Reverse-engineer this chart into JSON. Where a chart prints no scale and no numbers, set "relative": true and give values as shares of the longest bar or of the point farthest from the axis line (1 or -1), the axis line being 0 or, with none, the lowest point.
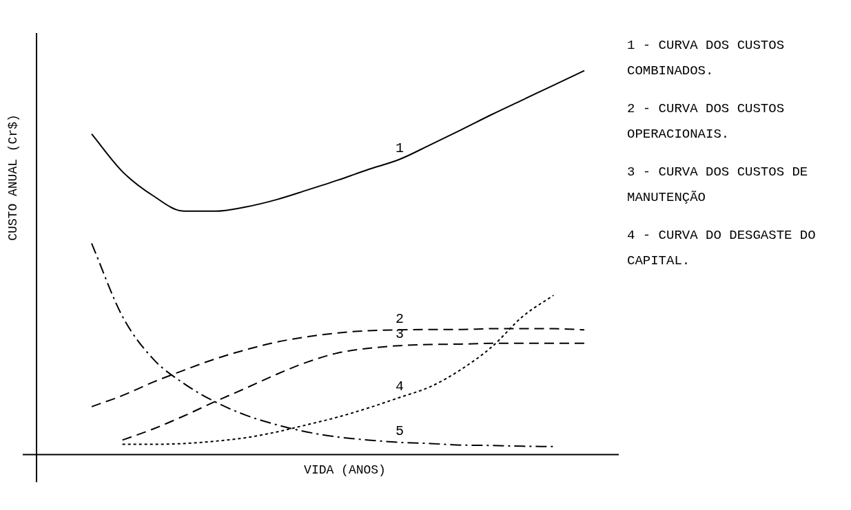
{
  "chart_data": {
    "type": "line",
    "relative": true,
    "xlabel": "VIDA (ANOS)",
    "ylabel": "CUSTO ANUAL (Cr$)",
    "legend": false,
    "marker": "none",
    "grid": false,
    "categories": [
      null,
      null,
      null,
      null,
      null,
      null,
      null,
      null,
      null,
      null,
      null,
      null,
      null,
      null,
      null,
      null,
      null
    ],
    "series": [
      {
        "name": "1",
        "color": "#000000",
        "line_style": "solid",
        "values": [
          0.835,
          0.737,
          0.674,
          0.634,
          0.634,
          0.645,
          0.664,
          0.689,
          0.715,
          0.743,
          0.769,
          0.807,
          0.846,
          0.886,
          0.924,
          0.962,
          1
        ]
      },
      {
        "name": "2",
        "color": "#000000",
        "line_style": "dashed",
        "values": [
          0.125,
          0.154,
          0.189,
          0.22,
          0.249,
          0.273,
          0.293,
          0.307,
          0.317,
          0.323,
          0.325,
          0.326,
          0.326,
          0.328,
          0.328,
          0.328,
          0.325
        ]
      },
      {
        "name": "3",
        "color": "#000000",
        "line_style": "dashed",
        "values": [
          null,
          0.038,
          0.067,
          0.101,
          0.138,
          0.173,
          0.209,
          0.241,
          0.265,
          0.277,
          0.284,
          0.287,
          0.288,
          0.29,
          0.29,
          0.29,
          0.29
        ]
      },
      {
        "name": "4",
        "color": "#000000",
        "line_style": "dotted",
        "values": [
          null,
          0.027,
          0.027,
          0.029,
          0.035,
          0.044,
          0.059,
          0.078,
          0.098,
          0.122,
          0.149,
          0.177,
          0.222,
          0.281,
          0.36,
          0.415,
          null
        ]
      },
      {
        "name": "5",
        "color": "#000000",
        "line_style": "dashdot",
        "values": [
          0.55,
          0.36,
          0.249,
          0.185,
          0.138,
          0.103,
          0.078,
          0.059,
          0.046,
          0.038,
          0.032,
          0.029,
          0.025,
          0.024,
          0.022,
          0.021,
          null
        ]
      }
    ],
    "annotations": [
      "1 - CURVA DOS CUSTOS COMBINADOS.",
      "2 - CURVA DOS CUSTOS OPERACIONAIS.",
      "3 - CURVA DOS CUSTOS DE MANUTENÇÃO",
      "4 - CURVA DO DESGASTE DO CAPITAL."
    ]
  }
}
